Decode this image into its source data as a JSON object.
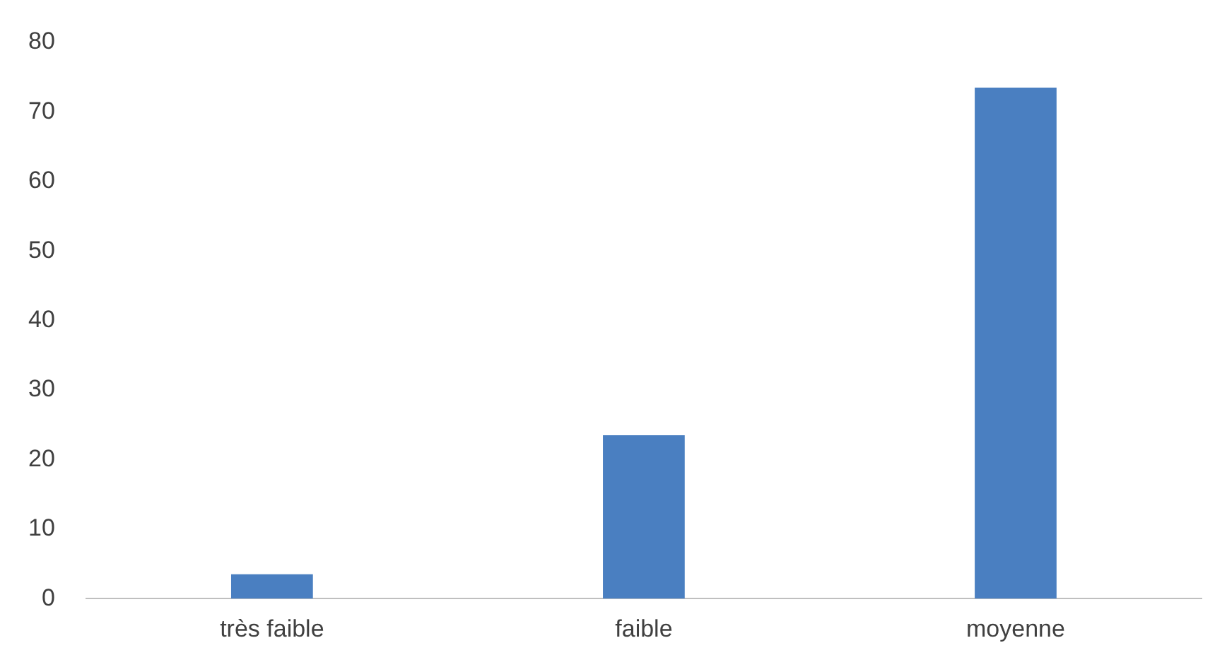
{
  "chart_data": {
    "type": "bar",
    "categories": [
      "très faible",
      "faible",
      "moyenne"
    ],
    "values": [
      3.5,
      23.5,
      73.5
    ],
    "color": "#4a7fc1",
    "ylim": [
      0,
      80
    ],
    "yticks": [
      0,
      10,
      20,
      30,
      40,
      50,
      60,
      70,
      80
    ],
    "grid": false,
    "legend": false
  }
}
